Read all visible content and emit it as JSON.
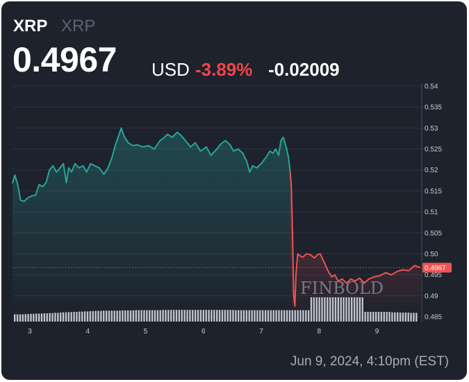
{
  "header": {
    "symbol": "XRP",
    "symbol_secondary": "XRP",
    "price": "0.4967",
    "currency": "USD",
    "change_percent": "-3.89%",
    "change_abs": "-0.02009",
    "timestamp": "Jun 9, 2024, 4:10pm (EST)"
  },
  "watermark": "FINBOLD",
  "colors": {
    "background": "#1e222d",
    "up": "#26a69a",
    "down": "#ef5350",
    "volume": "#d1d4dc"
  },
  "chart_data": {
    "type": "line",
    "xlabel": "",
    "ylabel": "",
    "x_ticks": [
      3,
      4,
      5,
      6,
      7,
      8,
      9
    ],
    "y_ticks": [
      "0.54",
      "0.535",
      "0.53",
      "0.525",
      "0.52",
      "0.515",
      "0.51",
      "0.505",
      "0.50",
      "0.495",
      "0.49",
      "0.485"
    ],
    "ylim": [
      0.485,
      0.54
    ],
    "xlim": [
      2.7,
      9.75
    ],
    "last_value_label": "0.4967",
    "grid": true,
    "series": [
      {
        "color": "#26a69a",
        "points": [
          [
            2.7,
            0.5168
          ],
          [
            2.74,
            0.5188
          ],
          [
            2.79,
            0.5165
          ],
          [
            2.84,
            0.5128
          ],
          [
            2.9,
            0.5125
          ],
          [
            2.96,
            0.5133
          ],
          [
            3.03,
            0.5138
          ],
          [
            3.1,
            0.514
          ],
          [
            3.16,
            0.5165
          ],
          [
            3.22,
            0.516
          ],
          [
            3.28,
            0.517
          ],
          [
            3.34,
            0.52
          ],
          [
            3.4,
            0.521
          ],
          [
            3.46,
            0.5195
          ],
          [
            3.52,
            0.5205
          ],
          [
            3.58,
            0.5215
          ],
          [
            3.63,
            0.517
          ],
          [
            3.67,
            0.5205
          ],
          [
            3.72,
            0.5195
          ],
          [
            3.78,
            0.5215
          ],
          [
            3.85,
            0.5205
          ],
          [
            3.92,
            0.521
          ],
          [
            3.98,
            0.5195
          ],
          [
            4.05,
            0.5215
          ],
          [
            4.12,
            0.521
          ],
          [
            4.2,
            0.5205
          ],
          [
            4.28,
            0.519
          ],
          [
            4.35,
            0.5205
          ],
          [
            4.42,
            0.523
          ],
          [
            4.48,
            0.526
          ],
          [
            4.53,
            0.528
          ],
          [
            4.58,
            0.53
          ],
          [
            4.63,
            0.528
          ],
          [
            4.7,
            0.5265
          ],
          [
            4.78,
            0.5258
          ],
          [
            4.86,
            0.526
          ],
          [
            4.95,
            0.5255
          ],
          [
            5.05,
            0.5258
          ],
          [
            5.15,
            0.525
          ],
          [
            5.25,
            0.527
          ],
          [
            5.3,
            0.5275
          ],
          [
            5.38,
            0.5285
          ],
          [
            5.46,
            0.5278
          ],
          [
            5.55,
            0.529
          ],
          [
            5.63,
            0.528
          ],
          [
            5.7,
            0.5268
          ],
          [
            5.78,
            0.5255
          ],
          [
            5.86,
            0.5265
          ],
          [
            5.95,
            0.5245
          ],
          [
            6.05,
            0.5255
          ],
          [
            6.13,
            0.5235
          ],
          [
            6.22,
            0.5248
          ],
          [
            6.3,
            0.5262
          ],
          [
            6.38,
            0.527
          ],
          [
            6.46,
            0.526
          ],
          [
            6.52,
            0.5245
          ],
          [
            6.6,
            0.525
          ],
          [
            6.68,
            0.524
          ],
          [
            6.75,
            0.522
          ],
          [
            6.8,
            0.5195
          ],
          [
            6.85,
            0.521
          ],
          [
            6.92,
            0.5205
          ],
          [
            7.0,
            0.5215
          ],
          [
            7.08,
            0.523
          ],
          [
            7.15,
            0.5245
          ],
          [
            7.2,
            0.524
          ],
          [
            7.25,
            0.525
          ],
          [
            7.3,
            0.5235
          ],
          [
            7.34,
            0.527
          ],
          [
            7.38,
            0.5278
          ],
          [
            7.41,
            0.5265
          ],
          [
            7.44,
            0.525
          ],
          [
            7.47,
            0.523
          ],
          [
            7.5,
            0.5195
          ]
        ]
      },
      {
        "color": "#ef5350",
        "points": [
          [
            7.5,
            0.5195
          ],
          [
            7.52,
            0.516
          ],
          [
            7.54,
            0.505
          ],
          [
            7.56,
            0.49
          ],
          [
            7.58,
            0.4875
          ],
          [
            7.6,
            0.495
          ],
          [
            7.63,
            0.5
          ],
          [
            7.67,
            0.4995
          ],
          [
            7.72,
            0.4992
          ],
          [
            7.78,
            0.5
          ],
          [
            7.85,
            0.4998
          ],
          [
            7.92,
            0.499
          ],
          [
            7.97,
            0.4998
          ],
          [
            8.02,
            0.5
          ],
          [
            8.07,
            0.4985
          ],
          [
            8.12,
            0.497
          ],
          [
            8.17,
            0.4955
          ],
          [
            8.22,
            0.4945
          ],
          [
            8.27,
            0.495
          ],
          [
            8.33,
            0.4935
          ],
          [
            8.4,
            0.494
          ],
          [
            8.47,
            0.493
          ],
          [
            8.55,
            0.494
          ],
          [
            8.62,
            0.4935
          ],
          [
            8.7,
            0.4942
          ],
          [
            8.78,
            0.493
          ],
          [
            8.86,
            0.494
          ],
          [
            8.95,
            0.4945
          ],
          [
            9.05,
            0.4948
          ],
          [
            9.15,
            0.4955
          ],
          [
            9.25,
            0.495
          ],
          [
            9.35,
            0.4958
          ],
          [
            9.45,
            0.4962
          ],
          [
            9.55,
            0.496
          ],
          [
            9.65,
            0.4972
          ],
          [
            9.75,
            0.4967
          ]
        ]
      }
    ],
    "volume": [
      0.3,
      0.3,
      0.3,
      0.3,
      0.31,
      0.31,
      0.32,
      0.32,
      0.33,
      0.33,
      0.33,
      0.34,
      0.34,
      0.35,
      0.35,
      0.36,
      0.36,
      0.37,
      0.38,
      0.38,
      0.39,
      0.39,
      0.4,
      0.4,
      0.41,
      0.41,
      0.42,
      0.42,
      0.43,
      0.43,
      0.44,
      0.44,
      0.44,
      0.45,
      0.45,
      0.45,
      0.45,
      0.45,
      0.45,
      0.45,
      0.46,
      0.46,
      0.46,
      0.46,
      0.46,
      0.47,
      0.47,
      0.47,
      0.47,
      0.47,
      0.47,
      0.47,
      0.47,
      0.47,
      0.47,
      0.48,
      0.48,
      0.48,
      0.48,
      0.48,
      0.48,
      0.48,
      0.48,
      0.48,
      0.48,
      0.48,
      0.48,
      0.48,
      0.48,
      0.48,
      0.48,
      0.48,
      0.48,
      0.48,
      0.48,
      0.48,
      0.48,
      0.48,
      0.48,
      0.48,
      0.48,
      0.48,
      0.47,
      0.47,
      0.47,
      0.47,
      0.47,
      0.47,
      0.47,
      0.47,
      0.47,
      0.47,
      0.47,
      0.47,
      0.47,
      0.47,
      0.47,
      0.47,
      0.47,
      0.47,
      0.47,
      0.47,
      0.47,
      0.47,
      0.47,
      0.47,
      0.47,
      0.47,
      0.47,
      0.47,
      1.0,
      1.0,
      1.0,
      1.0,
      1.0,
      1.0,
      1.0,
      1.0,
      1.0,
      1.0,
      1.0,
      1.0,
      1.0,
      1.0,
      1.0,
      1.0,
      1.0,
      1.0,
      1.0,
      1.0,
      0.4,
      0.4,
      0.4,
      0.4,
      0.4,
      0.4,
      0.4,
      0.4,
      0.4,
      0.4,
      0.38,
      0.38,
      0.38,
      0.37,
      0.37,
      0.37,
      0.37,
      0.36,
      0.36,
      0.36
    ]
  }
}
